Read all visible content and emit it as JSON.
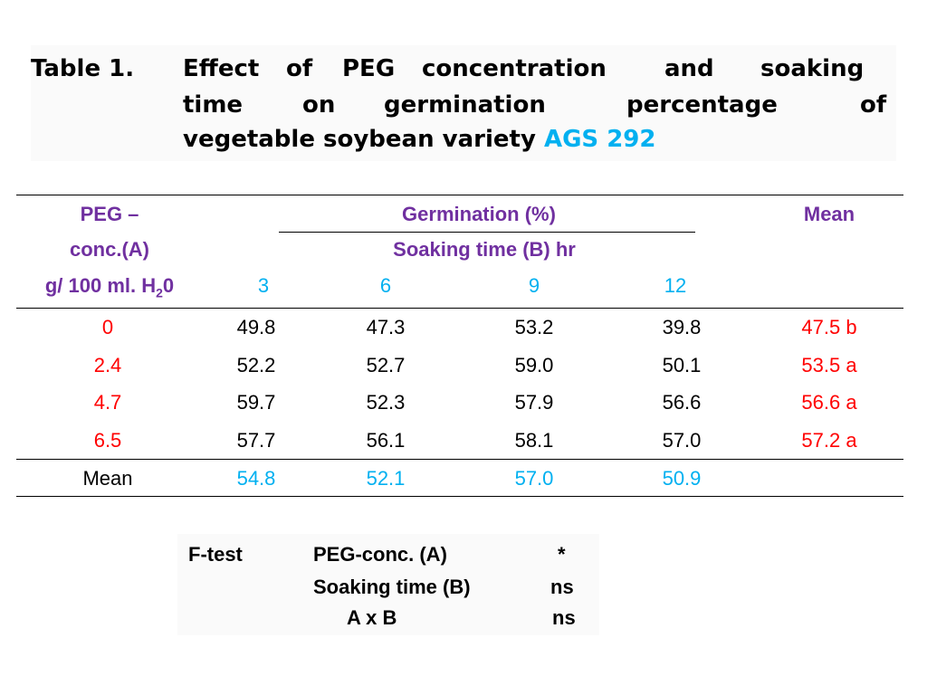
{
  "title": {
    "prefix": "Table 1.",
    "line1_words": [
      "Effect",
      "of",
      "PEG",
      "concentration",
      "and",
      "soaking"
    ],
    "line2_words": [
      "time",
      "on",
      "germination",
      "percentage",
      "of"
    ],
    "line3_text": "vegetable soybean variety",
    "line3_accent": "AGS 292"
  },
  "header": {
    "peg_line1": "PEG –",
    "peg_line2": "conc.(A)",
    "peg_line3_main": "g/ 100 ml. H",
    "peg_line3_sub": "2",
    "peg_line3_tail": "0",
    "germination": "Germination (%)",
    "soaking": "Soaking time (B) hr",
    "mean": "Mean",
    "times": [
      "3",
      "6",
      "9",
      "12"
    ]
  },
  "rows": [
    {
      "conc": "0",
      "values": [
        "49.8",
        "47.3",
        "53.2",
        "39.8"
      ],
      "mean": "47.5 b"
    },
    {
      "conc": "2.4",
      "values": [
        "52.2",
        "52.7",
        "59.0",
        "50.1"
      ],
      "mean": "53.5 a"
    },
    {
      "conc": "4.7",
      "values": [
        "59.7",
        "52.3",
        "57.9",
        "56.6"
      ],
      "mean": "56.6 a"
    },
    {
      "conc": "6.5",
      "values": [
        "57.7",
        "56.1",
        "58.1",
        "57.0"
      ],
      "mean": "57.2 a"
    }
  ],
  "mean_row": {
    "label": "Mean",
    "values": [
      "54.8",
      "52.1",
      "57.0",
      "50.9"
    ]
  },
  "ftest": {
    "label": "F-test",
    "rows": [
      {
        "factor": "PEG-conc. (A)",
        "result": "*"
      },
      {
        "factor": "Soaking time (B)",
        "result": "ns"
      },
      {
        "factor": "A x B",
        "result": "ns"
      }
    ]
  },
  "colors": {
    "header": "#7030a0",
    "accent": "#00b0f0",
    "highlight": "#ff0000"
  }
}
